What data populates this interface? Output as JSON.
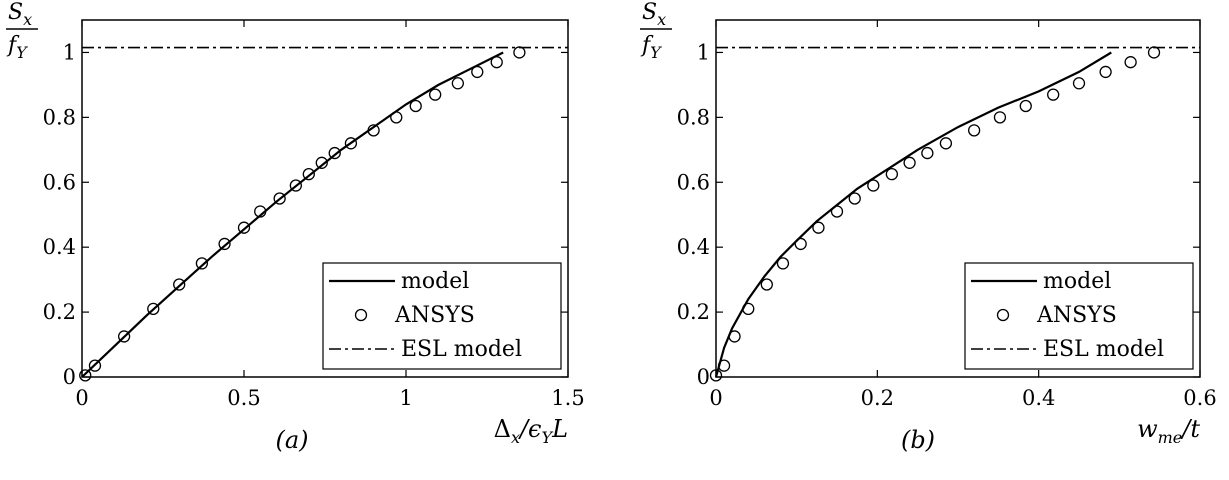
{
  "chart_data": [
    {
      "type": "line",
      "caption": "(a)",
      "xlabel": "Δx/ϵYL",
      "ylabel_num": "Sx",
      "ylabel_den": "fY",
      "xlim": [
        0,
        1.5
      ],
      "ylim": [
        0,
        1.1
      ],
      "xticks": [
        "0",
        "0.5",
        "1",
        "1.5"
      ],
      "xtick_values": [
        0,
        0.5,
        1,
        1.5
      ],
      "yticks": [
        "0",
        "0.2",
        "0.4",
        "0.6",
        "0.8",
        "1"
      ],
      "ytick_values": [
        0,
        0.2,
        0.4,
        0.6,
        0.8,
        1
      ],
      "legend_position": "bottom-right",
      "series": [
        {
          "name": "model",
          "style": "solid",
          "x": [
            0,
            0.1,
            0.2,
            0.3,
            0.4,
            0.5,
            0.6,
            0.7,
            0.8,
            0.9,
            1.0,
            1.1,
            1.2,
            1.3
          ],
          "y": [
            0,
            0.095,
            0.19,
            0.28,
            0.37,
            0.455,
            0.54,
            0.62,
            0.7,
            0.77,
            0.84,
            0.9,
            0.95,
            1.0
          ]
        },
        {
          "name": "ANSYS",
          "style": "circle",
          "x": [
            0.01,
            0.04,
            0.13,
            0.22,
            0.3,
            0.37,
            0.44,
            0.5,
            0.55,
            0.61,
            0.66,
            0.7,
            0.74,
            0.78,
            0.83,
            0.9,
            0.97,
            1.03,
            1.09,
            1.16,
            1.22,
            1.28,
            1.35
          ],
          "y": [
            0.005,
            0.035,
            0.125,
            0.21,
            0.285,
            0.35,
            0.41,
            0.46,
            0.51,
            0.55,
            0.59,
            0.625,
            0.66,
            0.69,
            0.72,
            0.76,
            0.8,
            0.835,
            0.87,
            0.905,
            0.94,
            0.97,
            1.0
          ]
        },
        {
          "name": "ESL model",
          "style": "dashdot",
          "x": [
            0,
            1.5
          ],
          "y": [
            1.015,
            1.015
          ]
        }
      ]
    },
    {
      "type": "line",
      "caption": "(b)",
      "xlabel": "wme/t",
      "ylabel_num": "Sx",
      "ylabel_den": "fY",
      "xlim": [
        0,
        0.6
      ],
      "ylim": [
        0,
        1.1
      ],
      "xticks": [
        "0",
        "0.2",
        "0.4",
        "0.6"
      ],
      "xtick_values": [
        0,
        0.2,
        0.4,
        0.6
      ],
      "yticks": [
        "0",
        "0.2",
        "0.4",
        "0.6",
        "0.8",
        "1"
      ],
      "ytick_values": [
        0,
        0.2,
        0.4,
        0.6,
        0.8,
        1
      ],
      "legend_position": "bottom-right",
      "series": [
        {
          "name": "model",
          "style": "solid",
          "x": [
            0,
            0.01,
            0.02,
            0.04,
            0.06,
            0.08,
            0.1,
            0.125,
            0.15,
            0.175,
            0.2,
            0.25,
            0.3,
            0.35,
            0.4,
            0.45,
            0.49
          ],
          "y": [
            0,
            0.09,
            0.15,
            0.24,
            0.31,
            0.37,
            0.42,
            0.48,
            0.53,
            0.58,
            0.62,
            0.7,
            0.77,
            0.83,
            0.88,
            0.94,
            1.0
          ]
        },
        {
          "name": "ANSYS",
          "style": "circle",
          "x": [
            0.0,
            0.01,
            0.023,
            0.04,
            0.063,
            0.083,
            0.105,
            0.127,
            0.15,
            0.172,
            0.195,
            0.218,
            0.24,
            0.262,
            0.285,
            0.32,
            0.352,
            0.384,
            0.418,
            0.45,
            0.483,
            0.514,
            0.543
          ],
          "y": [
            0.005,
            0.035,
            0.125,
            0.21,
            0.285,
            0.35,
            0.41,
            0.46,
            0.51,
            0.55,
            0.59,
            0.625,
            0.66,
            0.69,
            0.72,
            0.76,
            0.8,
            0.835,
            0.87,
            0.905,
            0.94,
            0.97,
            1.0
          ]
        },
        {
          "name": "ESL model",
          "style": "dashdot",
          "x": [
            0,
            0.6
          ],
          "y": [
            1.015,
            1.015
          ]
        }
      ]
    }
  ]
}
